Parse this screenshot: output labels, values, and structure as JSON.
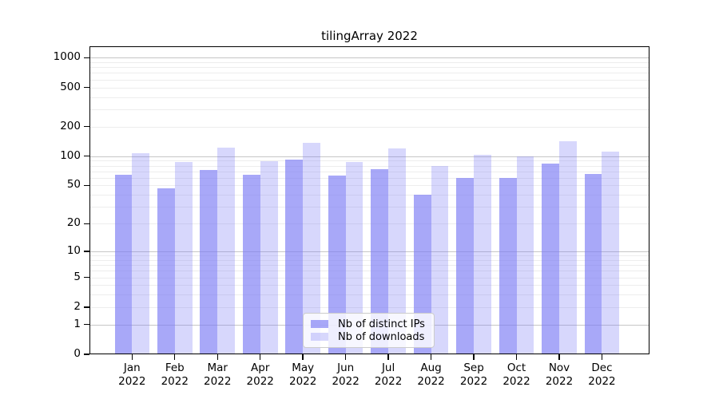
{
  "chart_data": {
    "type": "bar",
    "title": "tilingArray 2022",
    "year": "2022",
    "months": [
      "Jan",
      "Feb",
      "Mar",
      "Apr",
      "May",
      "Jun",
      "Jul",
      "Aug",
      "Sep",
      "Oct",
      "Nov",
      "Dec"
    ],
    "categories": [
      "Jan 2022",
      "Feb 2022",
      "Mar 2022",
      "Apr 2022",
      "May 2022",
      "Jun 2022",
      "Jul 2022",
      "Aug 2022",
      "Sep 2022",
      "Oct 2022",
      "Nov 2022",
      "Dec 2022"
    ],
    "series": [
      {
        "name": "Nb of distinct IPs",
        "color": "rgba(123,123,245,0.66)",
        "values": [
          64,
          47,
          72,
          65,
          92,
          63,
          74,
          40,
          60,
          60,
          84,
          66
        ]
      },
      {
        "name": "Nb of downloads",
        "color": "rgba(123,123,245,0.30)",
        "values": [
          108,
          87,
          122,
          89,
          138,
          87,
          120,
          80,
          103,
          100,
          141,
          111
        ]
      }
    ],
    "yticks": [
      0,
      1,
      2,
      5,
      10,
      20,
      50,
      100,
      200,
      500,
      1000
    ],
    "yscale": "log1p",
    "ylim": [
      0,
      1280
    ],
    "xlabel": "",
    "ylabel": "",
    "grid": true,
    "grid_major_color": "#c6c6c6",
    "grid_minor_color": "#ededed",
    "axis_color": "#000000",
    "background_color": "#ffffff",
    "legend_position": "lower center"
  }
}
